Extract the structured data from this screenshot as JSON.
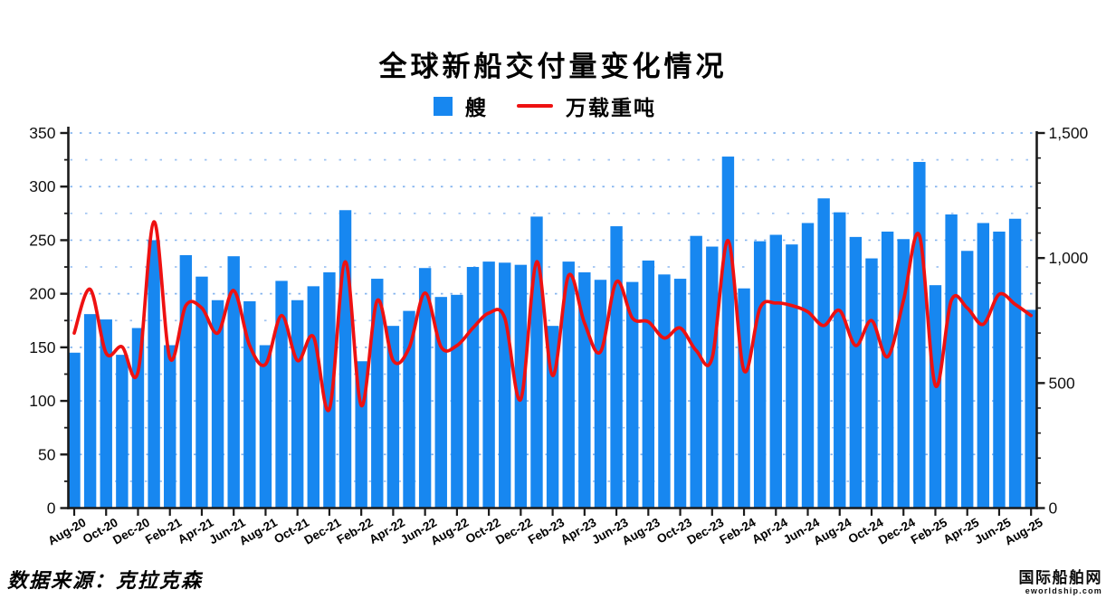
{
  "header": {
    "title": "全球新船交付量变化情况"
  },
  "legend": {
    "items": [
      {
        "label": "艘",
        "type": "bar",
        "color": "#1787f0"
      },
      {
        "label": "万载重吨",
        "type": "line",
        "color": "#ee1111"
      }
    ]
  },
  "footer": {
    "source_note": "数据来源：克拉克森"
  },
  "watermark": {
    "name": "国际船舶网",
    "domain": "eworldship.com"
  },
  "chart_data": {
    "type": "combo",
    "title": "全球新船交付量变化情况",
    "legend_position": "top",
    "grid": {
      "horizontal_dotted": true,
      "interval": 25,
      "color": "#7fb0ee"
    },
    "categories": [
      "Aug-20",
      "Sep-20",
      "Oct-20",
      "Nov-20",
      "Dec-20",
      "Jan-21",
      "Feb-21",
      "Mar-21",
      "Apr-21",
      "May-21",
      "Jun-21",
      "Jul-21",
      "Aug-21",
      "Sep-21",
      "Oct-21",
      "Nov-21",
      "Dec-21",
      "Jan-22",
      "Feb-22",
      "Mar-22",
      "Apr-22",
      "May-22",
      "Jun-22",
      "Jul-22",
      "Aug-22",
      "Sep-22",
      "Oct-22",
      "Nov-22",
      "Dec-22",
      "Jan-23",
      "Feb-23",
      "Mar-23",
      "Apr-23",
      "May-23",
      "Jun-23",
      "Jul-23",
      "Aug-23",
      "Sep-23",
      "Oct-23",
      "Nov-23",
      "Dec-23",
      "Jan-24",
      "Feb-24",
      "Mar-24",
      "Apr-24",
      "May-24",
      "Jun-24",
      "Jul-24",
      "Aug-24",
      "Sep-24",
      "Oct-24",
      "Nov-24",
      "Dec-24",
      "Jan-25",
      "Feb-25",
      "Mar-25",
      "Apr-25",
      "May-25",
      "Jun-25",
      "Jul-25",
      "Aug-25"
    ],
    "x_axis": {
      "labeled_every": 2
    },
    "axes": {
      "left": {
        "min": 0,
        "max": 350,
        "major_step": 50,
        "minor_step": 25,
        "tick_labels": [
          "0",
          "50",
          "100",
          "150",
          "200",
          "250",
          "300",
          "350"
        ]
      },
      "right": {
        "min": 0,
        "max": 1500,
        "major_step": 500,
        "minor_step": 100,
        "tick_labels": [
          "0",
          "500",
          "1,000",
          "1,500"
        ]
      }
    },
    "series": [
      {
        "name": "艘",
        "type": "bar",
        "axis": "left",
        "color": "#1787f0",
        "values": [
          145,
          181,
          176,
          143,
          168,
          250,
          152,
          236,
          216,
          194,
          235,
          193,
          152,
          212,
          194,
          207,
          220,
          278,
          137,
          214,
          170,
          184,
          224,
          197,
          199,
          225,
          230,
          229,
          227,
          272,
          170,
          230,
          220,
          213,
          263,
          211,
          231,
          218,
          214,
          254,
          244,
          328,
          205,
          249,
          255,
          246,
          266,
          289,
          276,
          253,
          233,
          258,
          251,
          323,
          208,
          274,
          240,
          266,
          258,
          270,
          185
        ]
      },
      {
        "name": "万载重吨",
        "type": "line",
        "axis": "right",
        "color": "#ee1111",
        "values": [
          700,
          875,
          620,
          645,
          545,
          1145,
          600,
          810,
          800,
          700,
          870,
          650,
          575,
          770,
          590,
          685,
          395,
          985,
          410,
          830,
          590,
          640,
          860,
          645,
          650,
          720,
          780,
          760,
          435,
          985,
          530,
          930,
          740,
          625,
          905,
          760,
          745,
          680,
          720,
          630,
          600,
          1070,
          550,
          800,
          820,
          810,
          785,
          730,
          790,
          650,
          750,
          605,
          830,
          1090,
          490,
          830,
          800,
          735,
          855,
          815,
          770
        ]
      }
    ]
  }
}
